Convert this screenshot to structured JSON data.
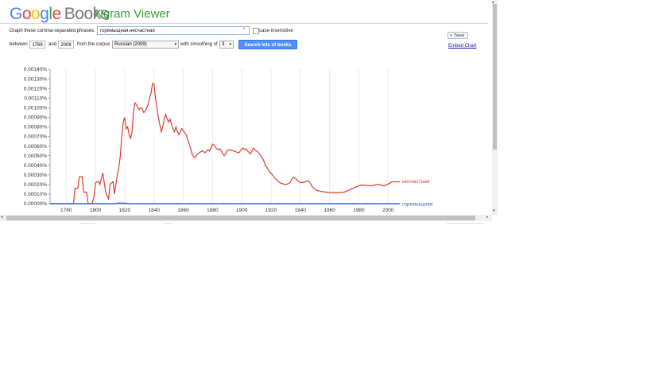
{
  "logo": {
    "g1": "G",
    "o1": "o",
    "o2": "o",
    "g2": "g",
    "l": "l",
    "e": "e",
    "books": "Books"
  },
  "app_title": "Ngram Viewer",
  "form": {
    "phrases_label": "Graph these comma-separated phrases:",
    "phrases_value": "горемыщная,несчастная",
    "clear_symbol": "×",
    "case_label": "case-insensitive",
    "between_label": "between",
    "start_year": "1769",
    "and_label": "and",
    "end_year": "2008",
    "corpus_label": "from the corpus",
    "corpus_value": "Russian (2009)",
    "smoothing_label": "with smoothing of",
    "smoothing_value": "3",
    "dropdown_arrow": "▾",
    "search_button": "Search lots of books"
  },
  "share": {
    "tweet_label": "Tweet",
    "embed_label": "Embed Chart"
  },
  "scrollbar": {
    "up": "▴",
    "down": "▾",
    "left": "◂",
    "right": "▸"
  },
  "chart_data": {
    "type": "line",
    "x_range": [
      1769,
      2008
    ],
    "ylim": [
      0,
      1.4e-05
    ],
    "y_ticks": [
      "0.00000%",
      "0.00010%",
      "0.00020%",
      "0.00030%",
      "0.00040%",
      "0.00050%",
      "0.00060%",
      "0.00070%",
      "0.00080%",
      "0.00090%",
      "0.00100%",
      "0.00110%",
      "0.00120%",
      "0.00130%",
      "0.00140%"
    ],
    "x_ticks": [
      "1780",
      "1800",
      "1820",
      "1840",
      "1860",
      "1880",
      "1900",
      "1920",
      "1940",
      "1960",
      "1980",
      "2000"
    ],
    "x_tick_values": [
      1780,
      1800,
      1820,
      1840,
      1860,
      1880,
      1900,
      1920,
      1940,
      1960,
      1980,
      2000
    ],
    "series": [
      {
        "name": "несчастная",
        "color": "#db3f2e",
        "points": [
          [
            1769,
            0
          ],
          [
            1785,
            0
          ],
          [
            1786,
            1.6e-06
          ],
          [
            1788,
            1.6e-06
          ],
          [
            1789,
            2.8e-06
          ],
          [
            1791,
            2.8e-06
          ],
          [
            1792,
            1.2e-06
          ],
          [
            1794,
            1.2e-06
          ],
          [
            1795,
            0
          ],
          [
            1797,
            0
          ],
          [
            1798,
            1e-07
          ],
          [
            1799,
            7e-07
          ],
          [
            1800,
            2.1e-06
          ],
          [
            1801,
            2.3e-06
          ],
          [
            1802,
            2.3e-06
          ],
          [
            1803,
            2e-06
          ],
          [
            1805,
            3.2e-06
          ],
          [
            1806,
            2.2e-06
          ],
          [
            1807,
            1.2e-06
          ],
          [
            1808,
            8e-07
          ],
          [
            1809,
            5e-07
          ],
          [
            1810,
            2e-06
          ],
          [
            1812,
            2.3e-06
          ],
          [
            1813,
            1e-06
          ],
          [
            1814,
            2e-06
          ],
          [
            1815,
            3e-06
          ],
          [
            1816,
            3.8e-06
          ],
          [
            1817,
            5e-06
          ],
          [
            1818,
            7e-06
          ],
          [
            1819,
            8.5e-06
          ],
          [
            1820,
            9e-06
          ],
          [
            1821,
            7.8e-06
          ],
          [
            1822,
            8e-06
          ],
          [
            1823,
            7.2e-06
          ],
          [
            1824,
            6.8e-06
          ],
          [
            1825,
            7.5e-06
          ],
          [
            1826,
            9.5e-06
          ],
          [
            1827,
            1.05e-05
          ],
          [
            1828,
            1.03e-05
          ],
          [
            1829,
            1e-05
          ],
          [
            1830,
            9.8e-06
          ],
          [
            1831,
            1e-05
          ],
          [
            1832,
            9.9e-06
          ],
          [
            1833,
            9.5e-06
          ],
          [
            1834,
            9.6e-06
          ],
          [
            1835,
            1e-05
          ],
          [
            1836,
            1.03e-05
          ],
          [
            1837,
            1.1e-05
          ],
          [
            1838,
            1.15e-05
          ],
          [
            1839,
            1.25e-05
          ],
          [
            1840,
            1.25e-05
          ],
          [
            1841,
            1.1e-05
          ],
          [
            1842,
            1e-05
          ],
          [
            1843,
            9e-06
          ],
          [
            1844,
            8.2e-06
          ],
          [
            1845,
            7.5e-06
          ],
          [
            1846,
            8e-06
          ],
          [
            1847,
            8.8e-06
          ],
          [
            1848,
            9.3e-06
          ],
          [
            1849,
            8.8e-06
          ],
          [
            1850,
            8.5e-06
          ],
          [
            1851,
            8.8e-06
          ],
          [
            1852,
            8.2e-06
          ],
          [
            1853,
            7.8e-06
          ],
          [
            1854,
            7.5e-06
          ],
          [
            1855,
            8e-06
          ],
          [
            1856,
            7.5e-06
          ],
          [
            1857,
            7.2e-06
          ],
          [
            1858,
            7.5e-06
          ],
          [
            1859,
            7.8e-06
          ],
          [
            1860,
            7.6e-06
          ],
          [
            1862,
            7.2e-06
          ],
          [
            1863,
            6.7e-06
          ],
          [
            1864,
            6.2e-06
          ],
          [
            1865,
            5.8e-06
          ],
          [
            1866,
            5.2e-06
          ],
          [
            1867,
            4.9e-06
          ],
          [
            1868,
            4.8e-06
          ],
          [
            1869,
            5e-06
          ],
          [
            1870,
            5.2e-06
          ],
          [
            1871,
            5.3e-06
          ],
          [
            1872,
            5.4e-06
          ],
          [
            1873,
            5.5e-06
          ],
          [
            1874,
            5.4e-06
          ],
          [
            1875,
            5.3e-06
          ],
          [
            1876,
            5.5e-06
          ],
          [
            1877,
            5.6e-06
          ],
          [
            1878,
            5.5e-06
          ],
          [
            1879,
            5.8e-06
          ],
          [
            1880,
            6.2e-06
          ],
          [
            1881,
            6.1e-06
          ],
          [
            1882,
            5.9e-06
          ],
          [
            1883,
            5.7e-06
          ],
          [
            1884,
            5.6e-06
          ],
          [
            1885,
            5.7e-06
          ],
          [
            1886,
            5.5e-06
          ],
          [
            1887,
            5.2e-06
          ],
          [
            1888,
            5e-06
          ],
          [
            1889,
            5.2e-06
          ],
          [
            1890,
            5.5e-06
          ],
          [
            1891,
            5.6e-06
          ],
          [
            1892,
            5.6e-06
          ],
          [
            1894,
            5.5e-06
          ],
          [
            1896,
            5.4e-06
          ],
          [
            1898,
            5.3e-06
          ],
          [
            1899,
            5.5e-06
          ],
          [
            1900,
            5.7e-06
          ],
          [
            1901,
            5.8e-06
          ],
          [
            1902,
            5.6e-06
          ],
          [
            1903,
            5.7e-06
          ],
          [
            1904,
            5.5e-06
          ],
          [
            1905,
            5.3e-06
          ],
          [
            1906,
            5.2e-06
          ],
          [
            1907,
            5.5e-06
          ],
          [
            1908,
            5.8e-06
          ],
          [
            1909,
            5.6e-06
          ],
          [
            1910,
            5.5e-06
          ],
          [
            1911,
            5.4e-06
          ],
          [
            1912,
            5.2e-06
          ],
          [
            1913,
            5e-06
          ],
          [
            1914,
            4.8e-06
          ],
          [
            1915,
            4.5e-06
          ],
          [
            1916,
            4e-06
          ],
          [
            1917,
            3.8e-06
          ],
          [
            1918,
            3.6e-06
          ],
          [
            1919,
            3.3e-06
          ],
          [
            1920,
            3.2e-06
          ],
          [
            1921,
            3e-06
          ],
          [
            1922,
            2.8e-06
          ],
          [
            1923,
            2.6e-06
          ],
          [
            1924,
            2.5e-06
          ],
          [
            1925,
            2.3e-06
          ],
          [
            1926,
            2.2e-06
          ],
          [
            1927,
            2.1e-06
          ],
          [
            1928,
            2.1e-06
          ],
          [
            1929,
            2e-06
          ],
          [
            1930,
            2e-06
          ],
          [
            1932,
            2.1e-06
          ],
          [
            1933,
            2.2e-06
          ],
          [
            1934,
            2.5e-06
          ],
          [
            1935,
            2.7e-06
          ],
          [
            1936,
            2.7e-06
          ],
          [
            1937,
            2.6e-06
          ],
          [
            1938,
            2.4e-06
          ],
          [
            1939,
            2.3e-06
          ],
          [
            1940,
            2.2e-06
          ],
          [
            1942,
            2.2e-06
          ],
          [
            1944,
            2.3e-06
          ],
          [
            1945,
            2.4e-06
          ],
          [
            1946,
            2.3e-06
          ],
          [
            1947,
            2.1e-06
          ],
          [
            1948,
            1.8e-06
          ],
          [
            1950,
            1.5e-06
          ],
          [
            1952,
            1.35e-06
          ],
          [
            1955,
            1.25e-06
          ],
          [
            1958,
            1.2e-06
          ],
          [
            1962,
            1.15e-06
          ],
          [
            1966,
            1.15e-06
          ],
          [
            1970,
            1.2e-06
          ],
          [
            1973,
            1.4e-06
          ],
          [
            1976,
            1.6e-06
          ],
          [
            1979,
            1.8e-06
          ],
          [
            1982,
            1.95e-06
          ],
          [
            1985,
            1.9e-06
          ],
          [
            1988,
            1.85e-06
          ],
          [
            1991,
            1.95e-06
          ],
          [
            1994,
            2e-06
          ],
          [
            1997,
            1.85e-06
          ],
          [
            2000,
            2.05e-06
          ],
          [
            2003,
            2.3e-06
          ],
          [
            2006,
            2.25e-06
          ],
          [
            2008,
            2.3e-06
          ]
        ]
      },
      {
        "name": "горемыщная",
        "color": "#3366cc",
        "points": [
          [
            1769,
            0
          ],
          [
            1814,
            0
          ],
          [
            1815,
            5e-08
          ],
          [
            1820,
            5e-08
          ],
          [
            1823,
            0
          ],
          [
            2008,
            0
          ]
        ]
      }
    ]
  }
}
